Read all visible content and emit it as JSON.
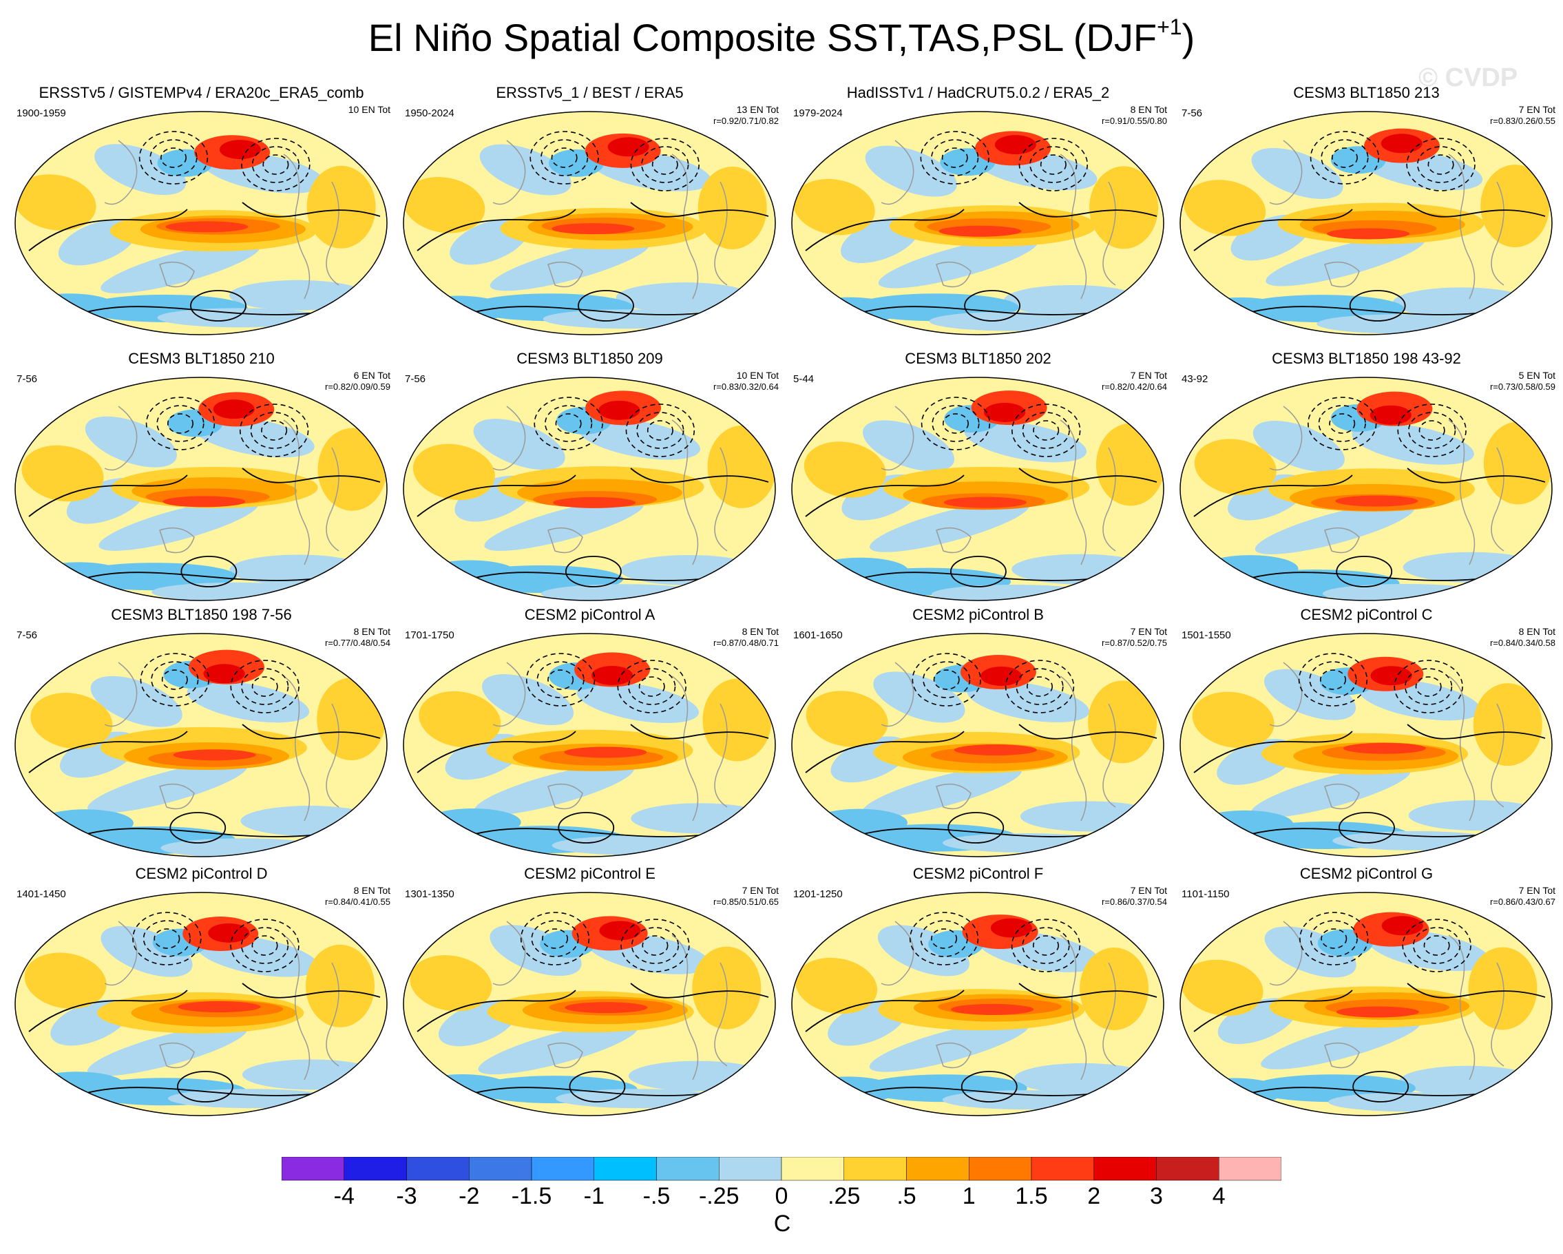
{
  "title": "El Niño Spatial Composite SST,TAS,PSL (DJF",
  "title_superscript": "+1",
  "title_suffix": ")",
  "watermark": "© CVDP",
  "panels": [
    {
      "title": "ERSSTv5 / GISTEMPv4 / ERA20c_ERA5_comb",
      "period": "1900-1959",
      "count": "10 EN Tot",
      "corr": ""
    },
    {
      "title": "ERSSTv5_1 / BEST / ERA5",
      "period": "1950-2024",
      "count": "13 EN Tot",
      "corr": "r=0.92/0.71/0.82"
    },
    {
      "title": "HadISSTv1 / HadCRUT5.0.2 / ERA5_2",
      "period": "1979-2024",
      "count": "8 EN Tot",
      "corr": "r=0.91/0.55/0.80"
    },
    {
      "title": "CESM3 BLT1850 213",
      "period": "7-56",
      "count": "7 EN Tot",
      "corr": "r=0.83/0.26/0.55"
    },
    {
      "title": "CESM3 BLT1850 210",
      "period": "7-56",
      "count": "6 EN Tot",
      "corr": "r=0.82/0.09/0.59"
    },
    {
      "title": "CESM3 BLT1850 209",
      "period": "7-56",
      "count": "10 EN Tot",
      "corr": "r=0.83/0.32/0.64"
    },
    {
      "title": "CESM3 BLT1850 202",
      "period": "5-44",
      "count": "7 EN Tot",
      "corr": "r=0.82/0.42/0.64"
    },
    {
      "title": "CESM3 BLT1850 198 43-92",
      "period": "43-92",
      "count": "5 EN Tot",
      "corr": "r=0.73/0.58/0.59"
    },
    {
      "title": "CESM3 BLT1850 198 7-56",
      "period": "7-56",
      "count": "8 EN Tot",
      "corr": "r=0.77/0.48/0.54"
    },
    {
      "title": "CESM2 piControl A",
      "period": "1701-1750",
      "count": "8 EN Tot",
      "corr": "r=0.87/0.48/0.71"
    },
    {
      "title": "CESM2 piControl B",
      "period": "1601-1650",
      "count": "7 EN Tot",
      "corr": "r=0.87/0.52/0.75"
    },
    {
      "title": "CESM2 piControl C",
      "period": "1501-1550",
      "count": "8 EN Tot",
      "corr": "r=0.84/0.34/0.58"
    },
    {
      "title": "CESM2 piControl D",
      "period": "1401-1450",
      "count": "8 EN Tot",
      "corr": "r=0.84/0.41/0.55"
    },
    {
      "title": "CESM2 piControl E",
      "period": "1301-1350",
      "count": "7 EN Tot",
      "corr": "r=0.85/0.51/0.65"
    },
    {
      "title": "CESM2 piControl F",
      "period": "1201-1250",
      "count": "7 EN Tot",
      "corr": "r=0.86/0.37/0.54"
    },
    {
      "title": "CESM2 piControl G",
      "period": "1101-1150",
      "count": "7 EN Tot",
      "corr": "r=0.86/0.43/0.67"
    }
  ],
  "colorbar": {
    "colors": [
      "#8a2be2",
      "#1e1ee6",
      "#2f4fe0",
      "#3c78e6",
      "#3399ff",
      "#00bfff",
      "#66c4ee",
      "#add8f0",
      "#fff5a0",
      "#ffd232",
      "#ffa500",
      "#ff7800",
      "#ff3c14",
      "#e60000",
      "#c81e1e",
      "#ffb4b4"
    ],
    "labels": [
      "-4",
      "-3",
      "-2",
      "-1.5",
      "-1",
      "-.5",
      "-.25",
      "0",
      ".25",
      ".5",
      "1",
      "1.5",
      "2",
      "3",
      "4"
    ],
    "units": "C"
  }
}
